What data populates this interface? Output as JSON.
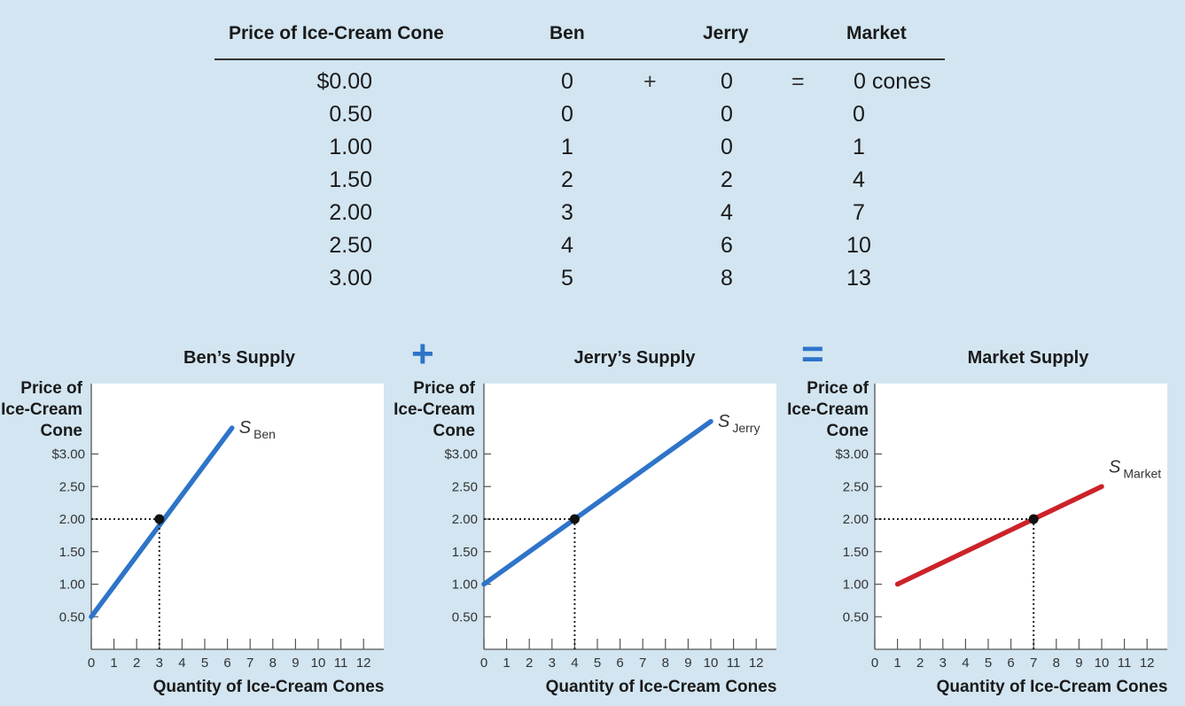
{
  "table": {
    "headers": [
      "Price of Ice-Cream Cone",
      "Ben",
      "Jerry",
      "Market"
    ],
    "operators": [
      "+",
      "="
    ],
    "rows": [
      {
        "price": "$0.00",
        "ben": "0",
        "jerry": "0",
        "market": "0 cones"
      },
      {
        "price": "0.50",
        "ben": "0",
        "jerry": "0",
        "market": "0"
      },
      {
        "price": "1.00",
        "ben": "1",
        "jerry": "0",
        "market": "1"
      },
      {
        "price": "1.50",
        "ben": "2",
        "jerry": "2",
        "market": "4"
      },
      {
        "price": "2.00",
        "ben": "3",
        "jerry": "4",
        "market": "7"
      },
      {
        "price": "2.50",
        "ben": "4",
        "jerry": "6",
        "market": "10"
      },
      {
        "price": "3.00",
        "ben": "5",
        "jerry": "8",
        "market": "13"
      }
    ]
  },
  "panel_operators": [
    "+",
    "="
  ],
  "colors": {
    "background": "#d2e5f1",
    "supply_blue": "#2e74c9",
    "supply_red": "#cc2229"
  },
  "chart_data": [
    {
      "type": "line",
      "title": "Ben’s Supply",
      "ylabel": "Price of Ice-Cream Cone",
      "xlabel": "Quantity of Ice-Cream Cones",
      "xlim": [
        0,
        13
      ],
      "ylim": [
        0,
        3.5
      ],
      "xticks": [
        "0",
        "1",
        "2",
        "3",
        "4",
        "5",
        "6",
        "7",
        "8",
        "9",
        "10",
        "11",
        "12"
      ],
      "yticks": [
        "0.50",
        "1.00",
        "1.50",
        "2.00",
        "2.50",
        "$3.00"
      ],
      "series": [
        {
          "name_main": "S",
          "name_sub": "Ben",
          "color": "#2e74c9",
          "points": [
            [
              0,
              0.5
            ],
            [
              6.2,
              3.4
            ]
          ]
        }
      ],
      "highlight": {
        "x": 3,
        "y": 2.0
      }
    },
    {
      "type": "line",
      "title": "Jerry’s Supply",
      "ylabel": "Price of Ice-Cream Cone",
      "xlabel": "Quantity of Ice-Cream Cones",
      "xlim": [
        0,
        13
      ],
      "ylim": [
        0,
        3.5
      ],
      "xticks": [
        "0",
        "1",
        "2",
        "3",
        "4",
        "5",
        "6",
        "7",
        "8",
        "9",
        "10",
        "11",
        "12"
      ],
      "yticks": [
        "0.50",
        "1.00",
        "1.50",
        "2.00",
        "2.50",
        "$3.00"
      ],
      "series": [
        {
          "name_main": "S",
          "name_sub": "Jerry",
          "color": "#2e74c9",
          "points": [
            [
              0,
              1.0
            ],
            [
              10,
              3.5
            ]
          ]
        }
      ],
      "highlight": {
        "x": 4,
        "y": 2.0
      }
    },
    {
      "type": "line",
      "title": "Market Supply",
      "ylabel": "Price of Ice-Cream Cone",
      "xlabel": "Quantity of Ice-Cream Cones",
      "xlim": [
        0,
        13
      ],
      "ylim": [
        0,
        3.5
      ],
      "xticks": [
        "0",
        "1",
        "2",
        "3",
        "4",
        "5",
        "6",
        "7",
        "8",
        "9",
        "10",
        "11",
        "12"
      ],
      "yticks": [
        "0.50",
        "1.00",
        "1.50",
        "2.00",
        "2.50",
        "$3.00"
      ],
      "series": [
        {
          "name_main": "S",
          "name_sub": "Market",
          "color": "#cc2229",
          "points": [
            [
              1,
              1.0
            ],
            [
              10,
              2.5
            ]
          ]
        }
      ],
      "highlight": {
        "x": 7,
        "y": 2.0
      }
    }
  ]
}
